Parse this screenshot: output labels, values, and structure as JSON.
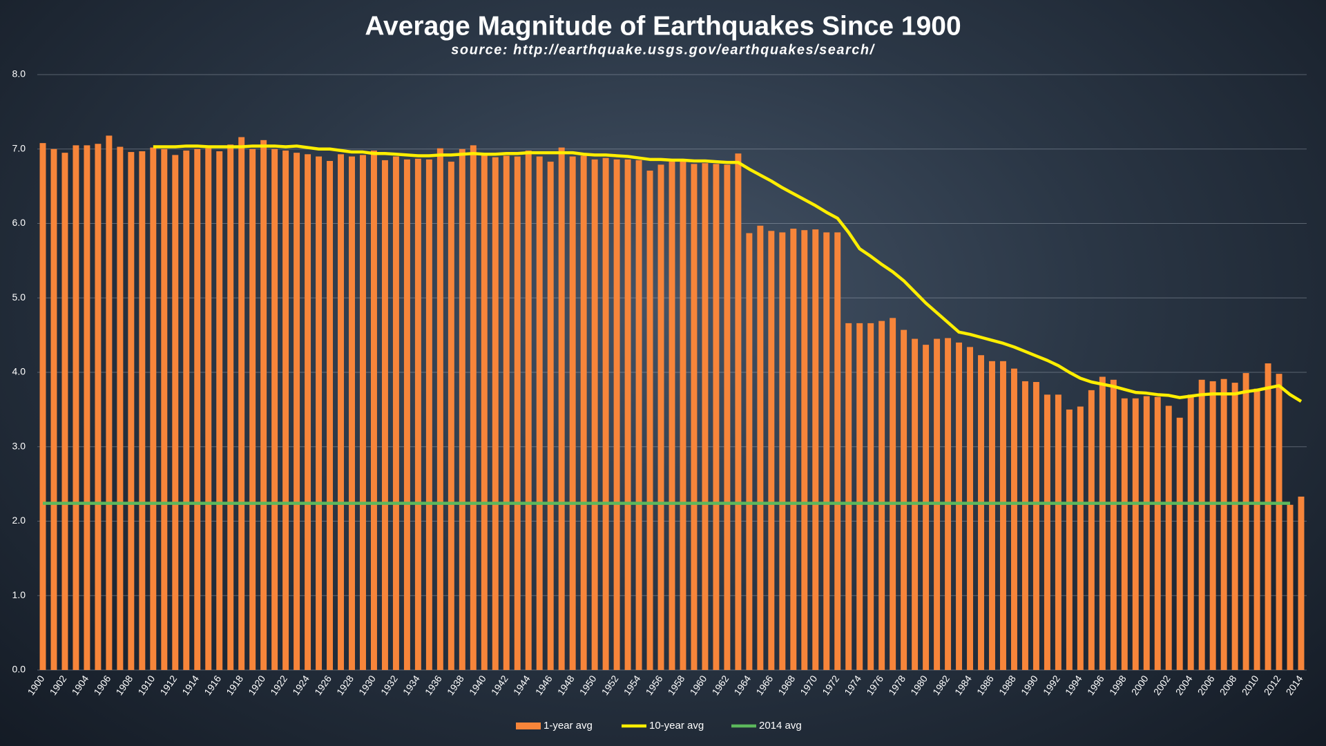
{
  "chart_data": {
    "type": "bar",
    "title": "Average Magnitude of Earthquakes Since 1900",
    "subtitle": "source: http://earthquake.usgs.gov/earthquakes/search/",
    "categories": [
      "1900",
      null,
      "1902",
      null,
      "1904",
      null,
      "1906",
      null,
      "1908",
      null,
      "1910",
      null,
      "1912",
      null,
      "1914",
      null,
      "1916",
      null,
      "1918",
      null,
      "1920",
      null,
      "1922",
      null,
      "1924",
      null,
      "1926",
      null,
      "1928",
      null,
      "1930",
      null,
      "1932",
      null,
      "1934",
      null,
      "1936",
      null,
      "1938",
      null,
      "1940",
      null,
      "1942",
      null,
      "1944",
      null,
      "1946",
      null,
      "1948",
      null,
      "1950",
      null,
      "1952",
      null,
      "1954",
      null,
      "1956",
      null,
      "1958",
      null,
      "1960",
      null,
      "1962",
      null,
      "1964",
      null,
      "1966",
      null,
      "1968",
      null,
      "1970",
      null,
      "1972",
      null,
      "1974",
      null,
      "1976",
      null,
      "1978",
      null,
      "1980",
      null,
      "1982",
      null,
      "1984",
      null,
      "1986",
      null,
      "1988",
      null,
      "1990",
      null,
      "1992",
      null,
      "1994",
      null,
      "1996",
      null,
      "1998",
      null,
      "2000",
      null,
      "2002",
      null,
      "2004",
      null,
      "2006",
      null,
      "2008",
      null,
      "2010",
      null,
      "2012",
      null,
      "2014"
    ],
    "series": [
      {
        "name": "1-year avg",
        "type": "bar",
        "color": "#f7853a",
        "values": [
          7.08,
          7.0,
          6.95,
          7.05,
          7.05,
          7.07,
          7.18,
          7.03,
          6.96,
          6.97,
          7.02,
          7.0,
          6.92,
          6.98,
          7.0,
          7.01,
          6.97,
          7.06,
          7.16,
          7.0,
          7.12,
          7.0,
          6.98,
          6.95,
          6.93,
          6.9,
          6.84,
          6.93,
          6.9,
          6.92,
          6.98,
          6.85,
          6.9,
          6.86,
          6.87,
          6.86,
          7.01,
          6.83,
          7.0,
          7.05,
          6.92,
          6.89,
          6.91,
          6.9,
          6.98,
          6.9,
          6.83,
          7.02,
          6.9,
          6.91,
          6.86,
          6.88,
          6.86,
          6.86,
          6.85,
          6.71,
          6.79,
          6.83,
          6.84,
          6.8,
          6.81,
          6.8,
          6.79,
          6.94,
          5.87,
          5.97,
          5.9,
          5.88,
          5.93,
          5.91,
          5.92,
          5.88,
          5.88,
          4.66,
          4.66,
          4.66,
          4.69,
          4.73,
          4.57,
          4.45,
          4.37,
          4.45,
          4.46,
          4.4,
          4.34,
          4.23,
          4.15,
          4.15,
          4.05,
          3.88,
          3.87,
          3.7,
          3.7,
          3.5,
          3.54,
          3.76,
          3.94,
          3.9,
          3.65,
          3.65,
          3.68,
          3.67,
          3.55,
          3.39,
          3.7,
          3.9,
          3.88,
          3.91,
          3.86,
          3.99,
          3.78,
          4.12,
          3.98,
          2.22,
          2.33
        ]
      },
      {
        "name": "10-year avg",
        "type": "line",
        "color": "#ffee00",
        "values": [
          null,
          null,
          null,
          null,
          null,
          null,
          null,
          null,
          null,
          null,
          7.03,
          7.03,
          7.03,
          7.04,
          7.04,
          7.03,
          7.03,
          7.03,
          7.03,
          7.04,
          7.04,
          7.04,
          7.03,
          7.04,
          7.02,
          7.0,
          7.0,
          6.98,
          6.96,
          6.96,
          6.94,
          6.94,
          6.93,
          6.92,
          6.91,
          6.91,
          6.92,
          6.92,
          6.93,
          6.94,
          6.93,
          6.93,
          6.94,
          6.94,
          6.95,
          6.95,
          6.95,
          6.95,
          6.95,
          6.93,
          6.92,
          6.92,
          6.91,
          6.9,
          6.88,
          6.86,
          6.86,
          6.85,
          6.85,
          6.84,
          6.84,
          6.83,
          6.82,
          6.82,
          6.73,
          6.65,
          6.57,
          6.48,
          6.4,
          6.32,
          6.24,
          6.15,
          6.07,
          5.88,
          5.66,
          5.56,
          5.45,
          5.35,
          5.23,
          5.08,
          4.93,
          4.8,
          4.67,
          4.54,
          4.51,
          4.47,
          4.43,
          4.39,
          4.34,
          4.28,
          4.22,
          4.16,
          4.09,
          4.0,
          3.92,
          3.87,
          3.84,
          3.81,
          3.77,
          3.73,
          3.72,
          3.7,
          3.69,
          3.66,
          3.68,
          3.7,
          3.71,
          3.71,
          3.71,
          3.74,
          3.76,
          3.79,
          3.82,
          3.7,
          3.61
        ]
      },
      {
        "name": "2014 avg",
        "type": "line",
        "color": "#5cb85c",
        "values": [
          2.24,
          2.24,
          2.24,
          2.24,
          2.24,
          2.24,
          2.24,
          2.24,
          2.24,
          2.24,
          2.24,
          2.24,
          2.24,
          2.24,
          2.24,
          2.24,
          2.24,
          2.24,
          2.24,
          2.24,
          2.24,
          2.24,
          2.24,
          2.24,
          2.24,
          2.24,
          2.24,
          2.24,
          2.24,
          2.24,
          2.24,
          2.24,
          2.24,
          2.24,
          2.24,
          2.24,
          2.24,
          2.24,
          2.24,
          2.24,
          2.24,
          2.24,
          2.24,
          2.24,
          2.24,
          2.24,
          2.24,
          2.24,
          2.24,
          2.24,
          2.24,
          2.24,
          2.24,
          2.24,
          2.24,
          2.24,
          2.24,
          2.24,
          2.24,
          2.24,
          2.24,
          2.24,
          2.24,
          2.24,
          2.24,
          2.24,
          2.24,
          2.24,
          2.24,
          2.24,
          2.24,
          2.24,
          2.24,
          2.24,
          2.24,
          2.24,
          2.24,
          2.24,
          2.24,
          2.24,
          2.24,
          2.24,
          2.24,
          2.24,
          2.24,
          2.24,
          2.24,
          2.24,
          2.24,
          2.24,
          2.24,
          2.24,
          2.24,
          2.24,
          2.24,
          2.24,
          2.24,
          2.24,
          2.24,
          2.24,
          2.24,
          2.24,
          2.24,
          2.24,
          2.24,
          2.24,
          2.24,
          2.24,
          2.24,
          2.24,
          2.24,
          2.24,
          2.24,
          2.24,
          null
        ]
      }
    ],
    "ylim": [
      0,
      8
    ],
    "yticks": [
      {
        "value": 0,
        "label": "0.0"
      },
      {
        "value": 1,
        "label": "1.0"
      },
      {
        "value": 2,
        "label": "2.0"
      },
      {
        "value": 3,
        "label": "3.0"
      },
      {
        "value": 4,
        "label": "4.0"
      },
      {
        "value": 5,
        "label": "5.0"
      },
      {
        "value": 6,
        "label": "6.0"
      },
      {
        "value": 7,
        "label": "7.0"
      },
      {
        "value": 8,
        "label": "8.0"
      }
    ],
    "grid": true,
    "legend": "bottom"
  }
}
